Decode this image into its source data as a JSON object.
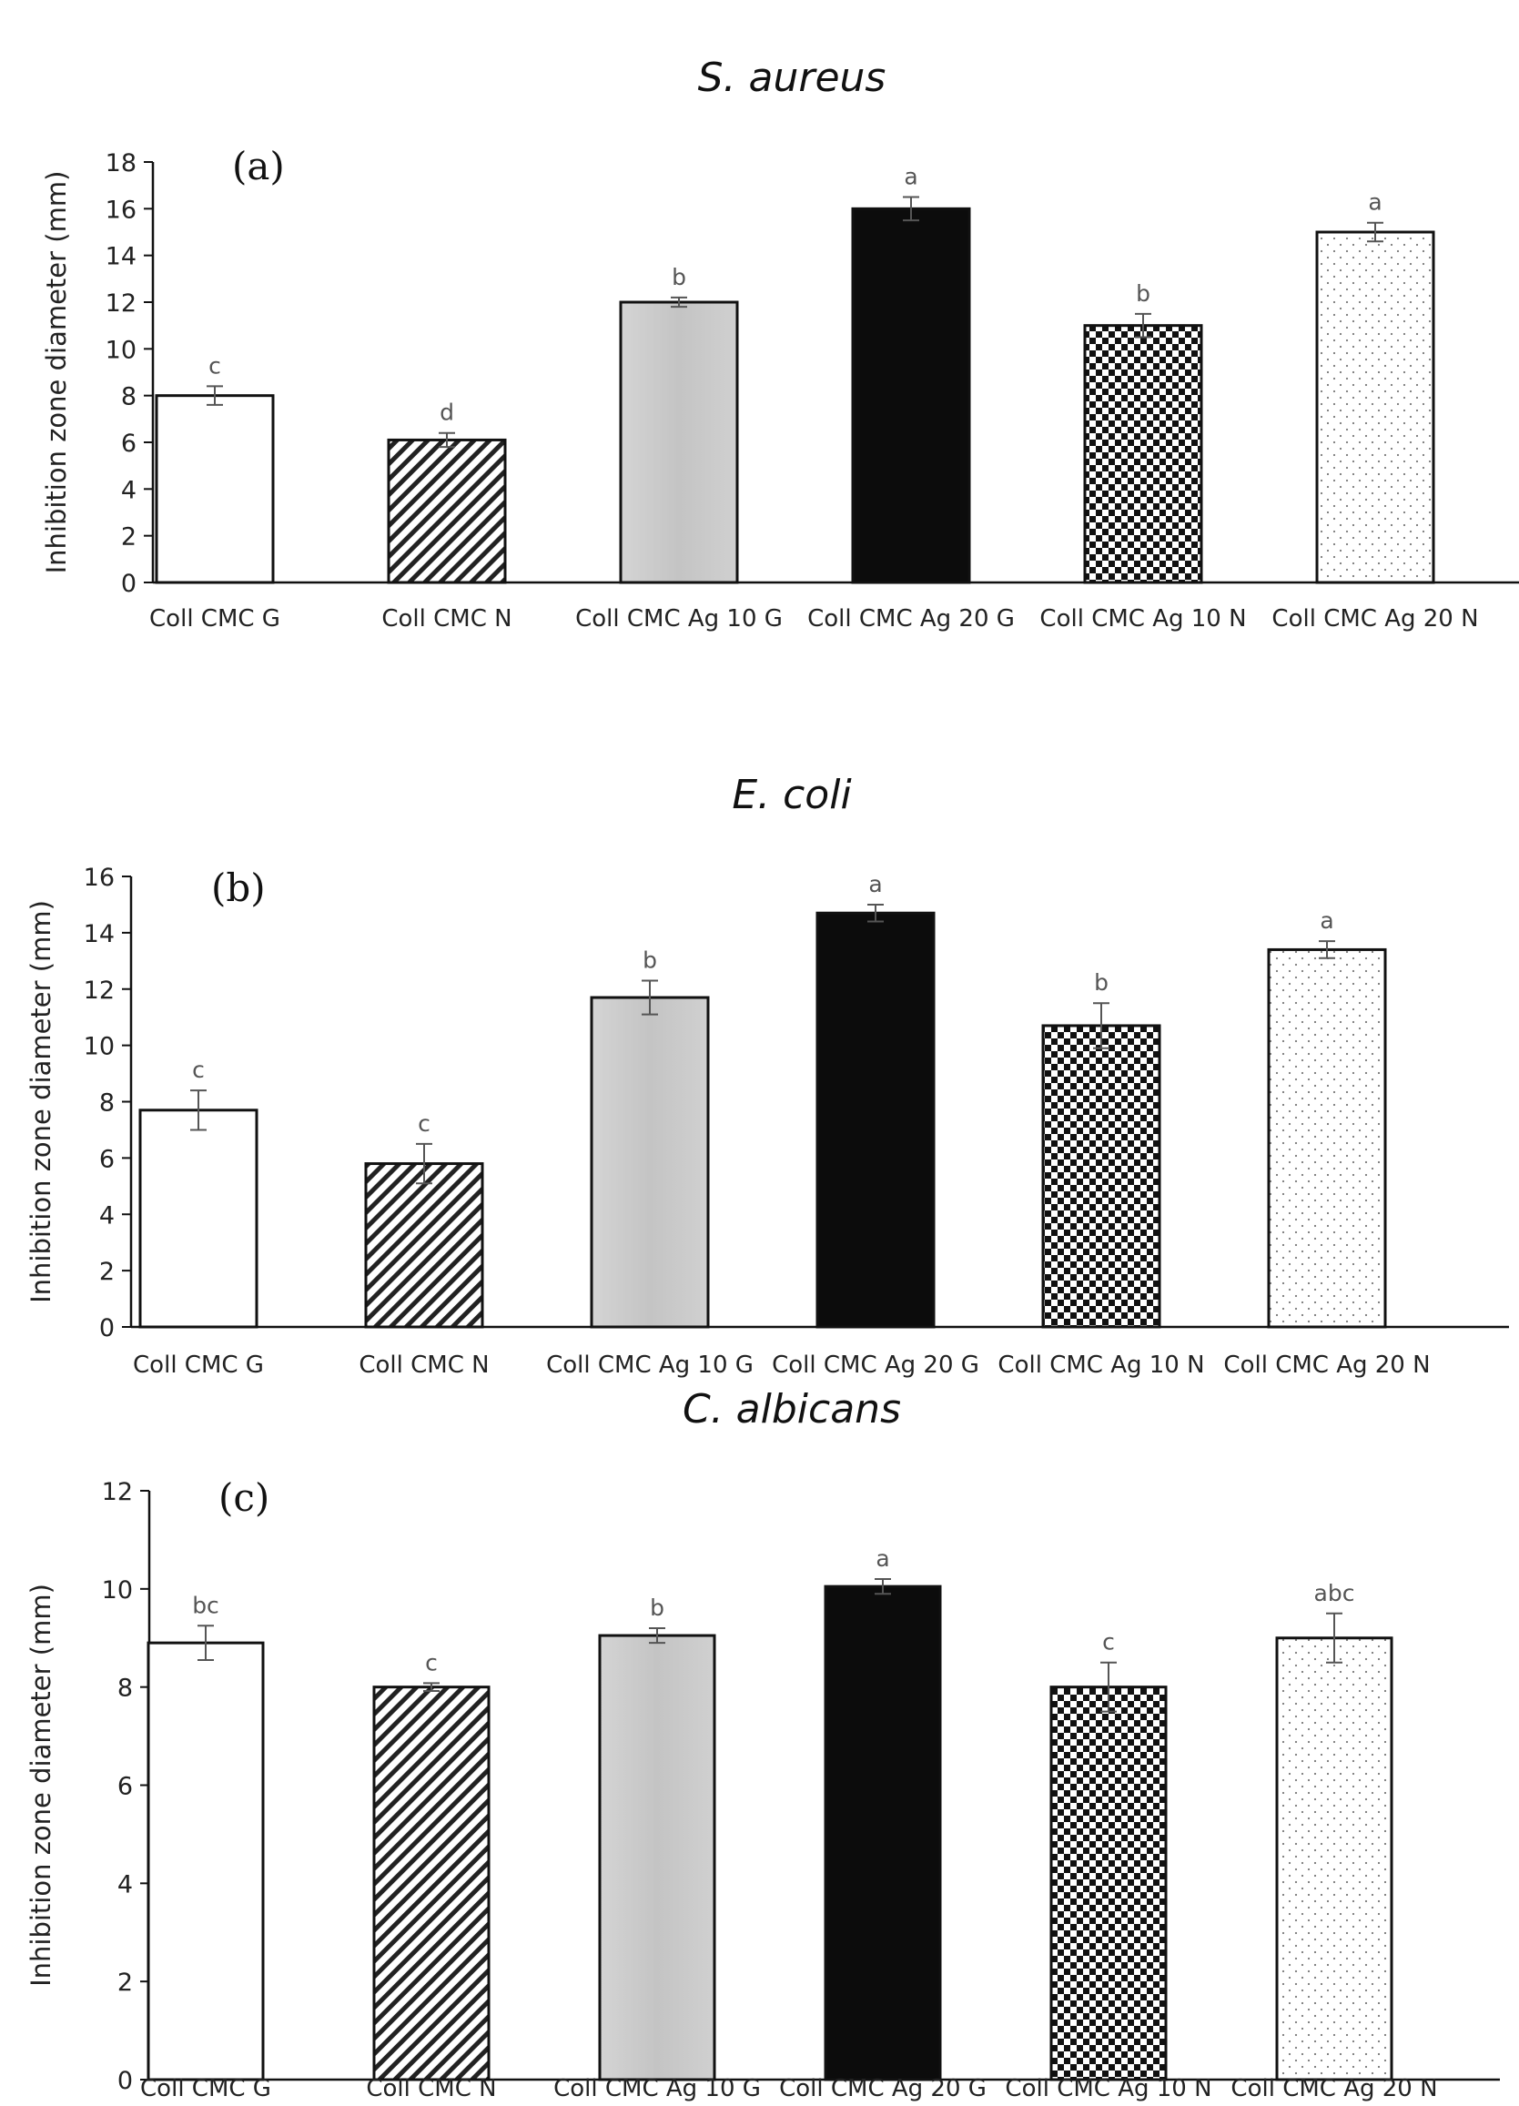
{
  "patterns": [
    "white",
    "diagonal",
    "lightgray",
    "black",
    "checker",
    "dots"
  ],
  "colors": {
    "axis": "#111111",
    "bar_stroke": "#111111",
    "gray_fill": "#c8c8c8",
    "error_bar": "#555555"
  },
  "chart_data": [
    {
      "type": "bar",
      "title": "S. aureus",
      "panel_label": "(a)",
      "ylabel": "Inhibition zone diameter (mm)",
      "xlabel": "",
      "ylim": [
        0,
        18
      ],
      "yticks": [
        0,
        2,
        4,
        6,
        8,
        10,
        12,
        14,
        16,
        18
      ],
      "categories": [
        "Coll CMC G",
        "Coll CMC N",
        "Coll CMC Ag 10 G",
        "Coll CMC Ag 20 G",
        "Coll CMC Ag 10 N",
        "Coll CMC Ag 20 N"
      ],
      "values": [
        8.0,
        6.1,
        12.0,
        16.0,
        11.0,
        15.0
      ],
      "errors": [
        0.4,
        0.3,
        0.2,
        0.5,
        0.5,
        0.4
      ],
      "significance": [
        "c",
        "d",
        "b",
        "a",
        "b",
        "a"
      ],
      "grid": false,
      "legend": "none"
    },
    {
      "type": "bar",
      "title": "E. coli",
      "panel_label": "(b)",
      "ylabel": "Inhibition zone diameter (mm)",
      "xlabel": "",
      "ylim": [
        0,
        16
      ],
      "yticks": [
        0,
        2,
        4,
        6,
        8,
        10,
        12,
        14,
        16
      ],
      "categories": [
        "Coll CMC G",
        "Coll CMC N",
        "Coll CMC Ag 10 G",
        "Coll CMC Ag 20 G",
        "Coll CMC Ag 10 N",
        "Coll CMC Ag 20 N"
      ],
      "values": [
        7.7,
        5.8,
        11.7,
        14.7,
        10.7,
        13.4
      ],
      "errors": [
        0.7,
        0.7,
        0.6,
        0.3,
        0.8,
        0.3
      ],
      "significance": [
        "c",
        "c",
        "b",
        "a",
        "b",
        "a"
      ],
      "grid": false,
      "legend": "none"
    },
    {
      "type": "bar",
      "title": "C. albicans",
      "panel_label": "(c)",
      "ylabel": "Inhibition zone diameter (mm)",
      "xlabel": "",
      "ylim": [
        0,
        12
      ],
      "yticks": [
        0,
        2,
        4,
        6,
        8,
        10,
        12
      ],
      "categories": [
        "Coll CMC G",
        "Coll CMC N",
        "Coll CMC Ag 10 G",
        "Coll CMC Ag 20 G",
        "Coll CMC Ag 10 N",
        "Coll CMC Ag 20 N"
      ],
      "values": [
        8.9,
        8.0,
        9.05,
        10.05,
        8.0,
        9.0
      ],
      "errors": [
        0.35,
        0.08,
        0.15,
        0.15,
        0.5,
        0.5
      ],
      "significance": [
        "bc",
        "c",
        "b",
        "a",
        "c",
        "abc"
      ],
      "grid": false,
      "legend": "none"
    }
  ]
}
